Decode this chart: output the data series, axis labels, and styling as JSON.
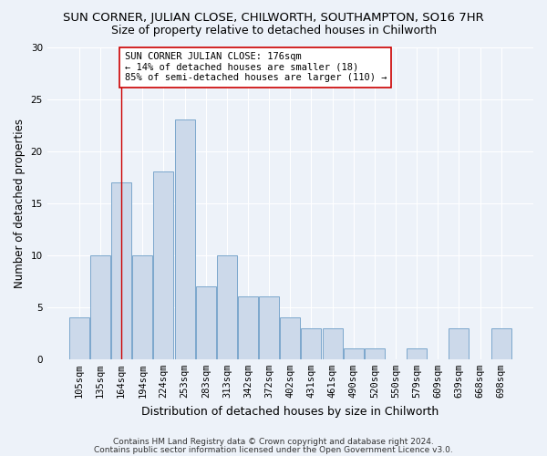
{
  "title": "SUN CORNER, JULIAN CLOSE, CHILWORTH, SOUTHAMPTON, SO16 7HR",
  "subtitle": "Size of property relative to detached houses in Chilworth",
  "xlabel": "Distribution of detached houses by size in Chilworth",
  "ylabel": "Number of detached properties",
  "bar_labels": [
    "105sqm",
    "135sqm",
    "164sqm",
    "194sqm",
    "224sqm",
    "253sqm",
    "283sqm",
    "313sqm",
    "342sqm",
    "372sqm",
    "402sqm",
    "431sqm",
    "461sqm",
    "490sqm",
    "520sqm",
    "550sqm",
    "579sqm",
    "609sqm",
    "639sqm",
    "668sqm",
    "698sqm"
  ],
  "bar_heights": [
    4,
    10,
    17,
    10,
    18,
    23,
    7,
    10,
    6,
    6,
    4,
    3,
    3,
    1,
    1,
    0,
    1,
    0,
    3,
    0,
    3
  ],
  "bar_color": "#ccd9ea",
  "bar_edgecolor": "#7ba7cc",
  "vline_x_idx": 2,
  "vline_color": "#cc0000",
  "annotation_text": "SUN CORNER JULIAN CLOSE: 176sqm\n← 14% of detached houses are smaller (18)\n85% of semi-detached houses are larger (110) →",
  "annotation_box_facecolor": "#ffffff",
  "annotation_box_edgecolor": "#cc0000",
  "ylim": [
    0,
    30
  ],
  "yticks": [
    0,
    5,
    10,
    15,
    20,
    25,
    30
  ],
  "footer_line1": "Contains HM Land Registry data © Crown copyright and database right 2024.",
  "footer_line2": "Contains public sector information licensed under the Open Government Licence v3.0.",
  "background_color": "#edf2f9",
  "grid_color": "#ffffff",
  "title_fontsize": 9.5,
  "subtitle_fontsize": 9,
  "ylabel_fontsize": 8.5,
  "xlabel_fontsize": 9,
  "tick_fontsize": 7.5,
  "annotation_fontsize": 7.5,
  "footer_fontsize": 6.5
}
